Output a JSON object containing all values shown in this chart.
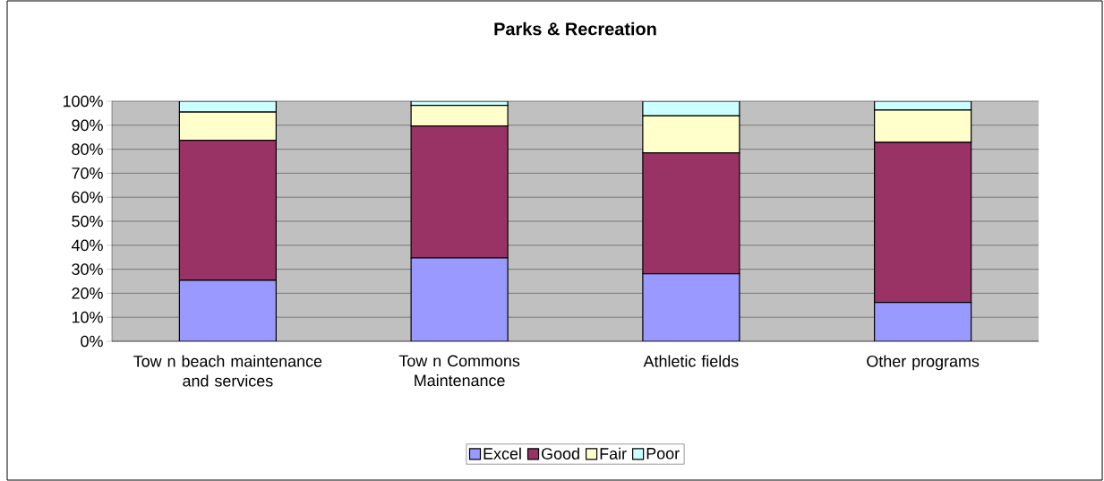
{
  "chart_data": {
    "type": "bar",
    "title": "Parks & Recreation",
    "stacked": true,
    "categories": [
      "Tow n beach maintenance and services",
      "Tow n Commons Maintenance",
      "Athletic fields",
      "Other programs"
    ],
    "series": [
      {
        "name": "Excel",
        "color": "#9999ff",
        "values": [
          25.4,
          34.7,
          28.1,
          16.2
        ]
      },
      {
        "name": "Good",
        "color": "#993366",
        "values": [
          58.3,
          55,
          50.4,
          66.7
        ]
      },
      {
        "name": "Fair",
        "color": "#ffffcc",
        "values": [
          11.8,
          8.6,
          15.4,
          13.4
        ]
      },
      {
        "name": "Poor",
        "color": "#ccffff",
        "values": [
          4.5,
          1.7,
          6.1,
          3.7
        ]
      }
    ],
    "ylim": [
      0,
      100
    ],
    "yticks": [
      {
        "value": 0,
        "label": "0%"
      },
      {
        "value": 10,
        "label": "10%"
      },
      {
        "value": 20,
        "label": "20%"
      },
      {
        "value": 30,
        "label": "30%"
      },
      {
        "value": 40,
        "label": "40%"
      },
      {
        "value": 50,
        "label": "50%"
      },
      {
        "value": 60,
        "label": "60%"
      },
      {
        "value": 70,
        "label": "70%"
      },
      {
        "value": 80,
        "label": "80%"
      },
      {
        "value": 90,
        "label": "90%"
      },
      {
        "value": 100,
        "label": "100%"
      }
    ],
    "grid": "y",
    "legend": "bottom"
  }
}
